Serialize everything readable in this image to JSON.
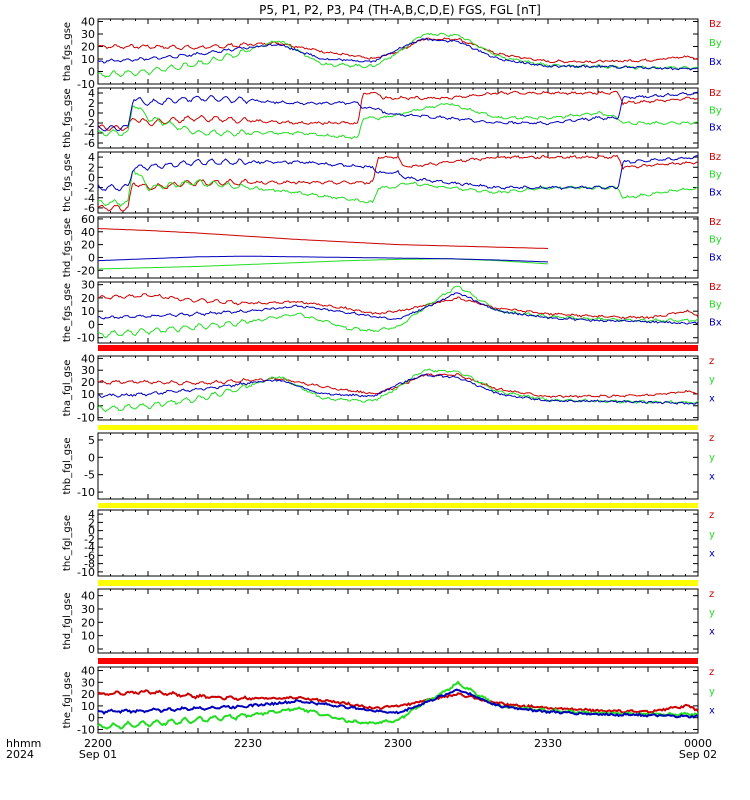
{
  "title": "P5, P1, P2, P3, P4 (TH-A,B,C,D,E) FGS, FGL [nT]",
  "colors": {
    "z": "#cc0000",
    "y": "#22dd22",
    "x": "#0000bb",
    "bar_red": "#ff0000",
    "bar_yellow": "#ffff00"
  },
  "time_axis": {
    "row1_label": "hhmm",
    "row2_label": "2024",
    "ticks": [
      {
        "t": 0,
        "label": "2200",
        "date": "Sep 01"
      },
      {
        "t": 30,
        "label": "2230",
        "date": ""
      },
      {
        "t": 60,
        "label": "2300",
        "date": ""
      },
      {
        "t": 90,
        "label": "2330",
        "date": ""
      },
      {
        "t": 120,
        "label": "0000",
        "date": "Sep 02"
      }
    ]
  },
  "chart_data": [
    {
      "type": "line",
      "ylabel": "tha_fgs_gse",
      "ylim": [
        -10,
        42
      ],
      "yticks": [
        -10,
        0,
        10,
        20,
        30,
        40
      ],
      "legend": [
        "Bz",
        "By",
        "Bx"
      ],
      "series": [
        {
          "name": "Bz",
          "color_key": "z",
          "wave": 1.2,
          "x": [
            0,
            10,
            20,
            28,
            36,
            45,
            55,
            60,
            65,
            72,
            80,
            90,
            100,
            110,
            118,
            120
          ],
          "y": [
            20,
            20,
            19,
            21,
            23,
            16,
            10,
            16,
            26,
            26,
            14,
            8,
            8,
            9,
            12,
            10
          ]
        },
        {
          "name": "By",
          "color_key": "y",
          "wave": 2,
          "x": [
            0,
            10,
            20,
            28,
            36,
            45,
            55,
            60,
            65,
            72,
            80,
            90,
            100,
            110,
            118,
            120
          ],
          "y": [
            -3,
            0,
            6,
            14,
            25,
            6,
            4,
            15,
            30,
            29,
            12,
            5,
            4,
            3,
            3,
            3
          ]
        },
        {
          "name": "Bx",
          "color_key": "x",
          "wave": 0.8,
          "x": [
            0,
            10,
            20,
            28,
            36,
            45,
            55,
            60,
            65,
            72,
            80,
            90,
            100,
            110,
            118,
            120
          ],
          "y": [
            8,
            10,
            14,
            18,
            22,
            10,
            8,
            18,
            26,
            24,
            10,
            4,
            4,
            3,
            2,
            2
          ]
        }
      ]
    },
    {
      "type": "line",
      "ylabel": "thb_fgs_gse",
      "ylim": [
        -7,
        5
      ],
      "yticks": [
        -6,
        -4,
        -2,
        0,
        2,
        4
      ],
      "legend": [
        "Bz",
        "By",
        "Bx"
      ],
      "series": [
        {
          "name": "Bz",
          "color_key": "z",
          "wave": 0.5,
          "x": [
            0,
            6,
            7,
            10,
            20,
            40,
            52,
            53,
            56,
            57,
            70,
            80,
            90,
            100,
            104,
            105,
            120
          ],
          "y": [
            -3,
            -3,
            -1,
            -2,
            -1,
            -2,
            -2,
            4,
            4,
            3,
            3,
            4,
            4,
            4,
            4,
            2,
            3
          ]
        },
        {
          "name": "By",
          "color_key": "y",
          "wave": 0.5,
          "x": [
            0,
            6,
            7,
            10,
            20,
            40,
            52,
            53,
            56,
            57,
            70,
            80,
            90,
            100,
            104,
            105,
            120
          ],
          "y": [
            -4,
            -4,
            2,
            -1,
            -4,
            -4,
            -5,
            -1,
            -1,
            -1,
            2,
            -1,
            -1,
            0,
            -1,
            -2,
            -2
          ]
        },
        {
          "name": "Bx",
          "color_key": "x",
          "wave": 0.5,
          "x": [
            0,
            6,
            7,
            10,
            20,
            40,
            52,
            53,
            56,
            57,
            70,
            80,
            90,
            100,
            104,
            105,
            120
          ],
          "y": [
            -3,
            -3,
            3,
            2,
            3,
            2,
            2,
            1,
            1,
            0,
            -1,
            -2,
            -2,
            -1,
            -1,
            3,
            4
          ]
        }
      ]
    },
    {
      "type": "line",
      "ylabel": "thc_fgs_gse",
      "ylim": [
        -7,
        5
      ],
      "yticks": [
        -6,
        -4,
        -2,
        0,
        2,
        4
      ],
      "legend": [
        "Bz",
        "By",
        "Bx"
      ],
      "series": [
        {
          "name": "Bz",
          "color_key": "z",
          "wave": 0.5,
          "x": [
            0,
            6,
            7,
            10,
            20,
            40,
            55,
            56,
            60,
            61,
            70,
            80,
            90,
            100,
            104,
            105,
            120
          ],
          "y": [
            -6,
            -6,
            -1,
            -2,
            -1,
            -1,
            -1,
            4,
            4,
            2,
            3,
            4,
            4,
            4,
            4,
            2,
            3
          ]
        },
        {
          "name": "By",
          "color_key": "y",
          "wave": 0.5,
          "x": [
            0,
            6,
            7,
            10,
            20,
            40,
            55,
            56,
            60,
            61,
            70,
            80,
            90,
            100,
            104,
            105,
            120
          ],
          "y": [
            -5,
            -5,
            2,
            -2,
            -1,
            -3,
            -5,
            -2,
            -2,
            -1,
            -2,
            -3,
            -2,
            -2,
            -2,
            -4,
            -2
          ]
        },
        {
          "name": "Bx",
          "color_key": "x",
          "wave": 0.5,
          "x": [
            0,
            6,
            7,
            10,
            20,
            40,
            55,
            56,
            60,
            61,
            70,
            80,
            90,
            100,
            104,
            105,
            120
          ],
          "y": [
            -2,
            -2,
            2,
            2,
            3,
            3,
            2,
            1,
            1,
            0,
            -1,
            -2,
            -2,
            -2,
            -2,
            3,
            4
          ]
        }
      ]
    },
    {
      "type": "line",
      "ylabel": "thd_fgs_gse",
      "ylim": [
        -32,
        63
      ],
      "yticks": [
        -20,
        0,
        20,
        40,
        60
      ],
      "legend": [
        "Bz",
        "By",
        "Bx"
      ],
      "series": [
        {
          "name": "Bz",
          "color_key": "z",
          "wave": 0,
          "x": [
            0,
            10,
            20,
            30,
            40,
            50,
            60,
            70,
            80,
            90
          ],
          "y": [
            45,
            42,
            38,
            33,
            28,
            24,
            20,
            18,
            16,
            14
          ]
        },
        {
          "name": "By",
          "color_key": "y",
          "wave": 0,
          "x": [
            0,
            10,
            20,
            30,
            40,
            50,
            60,
            70,
            80,
            90
          ],
          "y": [
            -18,
            -16,
            -14,
            -11,
            -8,
            -5,
            -3,
            -2,
            -5,
            -10
          ]
        },
        {
          "name": "Bx",
          "color_key": "x",
          "wave": 0,
          "x": [
            0,
            10,
            20,
            30,
            40,
            50,
            60,
            70,
            80,
            90
          ],
          "y": [
            -5,
            -2,
            1,
            2,
            1,
            0,
            -1,
            -2,
            -4,
            -7
          ]
        }
      ]
    },
    {
      "type": "line",
      "ylabel": "the_fgs_gse",
      "ylim": [
        -14,
        32
      ],
      "yticks": [
        -10,
        0,
        10,
        20,
        30
      ],
      "legend": [
        "Bz",
        "By",
        "Bx"
      ],
      "series": [
        {
          "name": "Bz",
          "color_key": "z",
          "wave": 1,
          "x": [
            0,
            10,
            20,
            30,
            40,
            50,
            55,
            60,
            65,
            72,
            80,
            90,
            100,
            110,
            118,
            120
          ],
          "y": [
            20,
            22,
            18,
            16,
            17,
            12,
            8,
            10,
            14,
            20,
            12,
            8,
            6,
            5,
            10,
            6
          ]
        },
        {
          "name": "By",
          "color_key": "y",
          "wave": 2,
          "x": [
            0,
            10,
            20,
            30,
            40,
            50,
            55,
            60,
            65,
            72,
            80,
            90,
            100,
            110,
            118,
            120
          ],
          "y": [
            -8,
            -5,
            -2,
            2,
            8,
            -3,
            -5,
            -2,
            12,
            29,
            10,
            6,
            4,
            3,
            3,
            3
          ]
        },
        {
          "name": "Bx",
          "color_key": "x",
          "wave": 0.8,
          "x": [
            0,
            10,
            20,
            30,
            40,
            50,
            55,
            60,
            65,
            72,
            80,
            90,
            100,
            110,
            118,
            120
          ],
          "y": [
            5,
            6,
            8,
            10,
            14,
            9,
            6,
            4,
            12,
            24,
            10,
            5,
            3,
            2,
            1,
            1
          ]
        }
      ]
    },
    {
      "type": "line",
      "ylabel": "tha_fgl_gse",
      "ylim": [
        -12,
        42
      ],
      "yticks": [
        -10,
        0,
        10,
        20,
        30,
        40
      ],
      "legend": [
        "z",
        "y",
        "x"
      ],
      "series": [
        {
          "name": "z",
          "color_key": "z",
          "wave": 1.2,
          "x": [
            0,
            10,
            20,
            28,
            36,
            45,
            55,
            60,
            65,
            72,
            80,
            90,
            100,
            110,
            118,
            120
          ],
          "y": [
            20,
            20,
            19,
            21,
            23,
            16,
            10,
            16,
            26,
            26,
            14,
            8,
            8,
            9,
            12,
            10
          ]
        },
        {
          "name": "y",
          "color_key": "y",
          "wave": 2,
          "x": [
            0,
            10,
            20,
            28,
            36,
            45,
            55,
            60,
            65,
            72,
            80,
            90,
            100,
            110,
            118,
            120
          ],
          "y": [
            -3,
            0,
            6,
            14,
            25,
            6,
            4,
            15,
            30,
            29,
            12,
            5,
            4,
            3,
            3,
            3
          ]
        },
        {
          "name": "x",
          "color_key": "x",
          "wave": 0.8,
          "x": [
            0,
            10,
            20,
            28,
            36,
            45,
            55,
            60,
            65,
            72,
            80,
            90,
            100,
            110,
            118,
            120
          ],
          "y": [
            8,
            10,
            14,
            18,
            22,
            10,
            8,
            18,
            26,
            24,
            10,
            4,
            4,
            3,
            2,
            2
          ]
        }
      ]
    },
    {
      "type": "line",
      "ylabel": "thb_fgl_gse",
      "ylim": [
        -12,
        7
      ],
      "yticks": [
        -10,
        -5,
        0,
        5
      ],
      "legend": [
        "z",
        "y",
        "x"
      ],
      "series": []
    },
    {
      "type": "line",
      "ylabel": "thc_fgl_gse",
      "ylim": [
        -11,
        5
      ],
      "yticks": [
        -10,
        -8,
        -6,
        -4,
        -2,
        0,
        2,
        4
      ],
      "legend": [
        "z",
        "y",
        "x"
      ],
      "series": []
    },
    {
      "type": "line",
      "ylabel": "thd_fgl_gse",
      "ylim": [
        -3,
        45
      ],
      "yticks": [
        0,
        10,
        20,
        30,
        40
      ],
      "legend": [
        "z",
        "y",
        "x"
      ],
      "series": []
    },
    {
      "type": "line",
      "ylabel": "the_fgl_gse",
      "ylim": [
        -13,
        43
      ],
      "yticks": [
        -10,
        0,
        10,
        20,
        30,
        40
      ],
      "legend": [
        "z",
        "y",
        "x"
      ],
      "series": [
        {
          "name": "z",
          "color_key": "z",
          "wave": 1,
          "x": [
            0,
            10,
            20,
            30,
            40,
            50,
            55,
            60,
            65,
            72,
            80,
            90,
            100,
            110,
            118,
            120
          ],
          "y": [
            20,
            22,
            18,
            16,
            17,
            12,
            8,
            10,
            14,
            20,
            12,
            8,
            6,
            5,
            10,
            6
          ]
        },
        {
          "name": "y",
          "color_key": "y",
          "wave": 2,
          "x": [
            0,
            10,
            20,
            30,
            40,
            50,
            55,
            60,
            65,
            72,
            80,
            90,
            100,
            110,
            118,
            120
          ],
          "y": [
            -8,
            -5,
            -2,
            2,
            8,
            -3,
            -5,
            -2,
            12,
            29,
            10,
            6,
            4,
            3,
            3,
            3
          ]
        },
        {
          "name": "x",
          "color_key": "x",
          "wave": 0.8,
          "x": [
            0,
            10,
            20,
            30,
            40,
            50,
            55,
            60,
            65,
            72,
            80,
            90,
            100,
            110,
            118,
            120
          ],
          "y": [
            5,
            6,
            8,
            10,
            14,
            9,
            6,
            4,
            12,
            24,
            10,
            5,
            3,
            2,
            1,
            1
          ]
        }
      ]
    }
  ],
  "separators": [
    "bar_red",
    "bar_yellow",
    "bar_yellow",
    "bar_yellow",
    "bar_red"
  ]
}
